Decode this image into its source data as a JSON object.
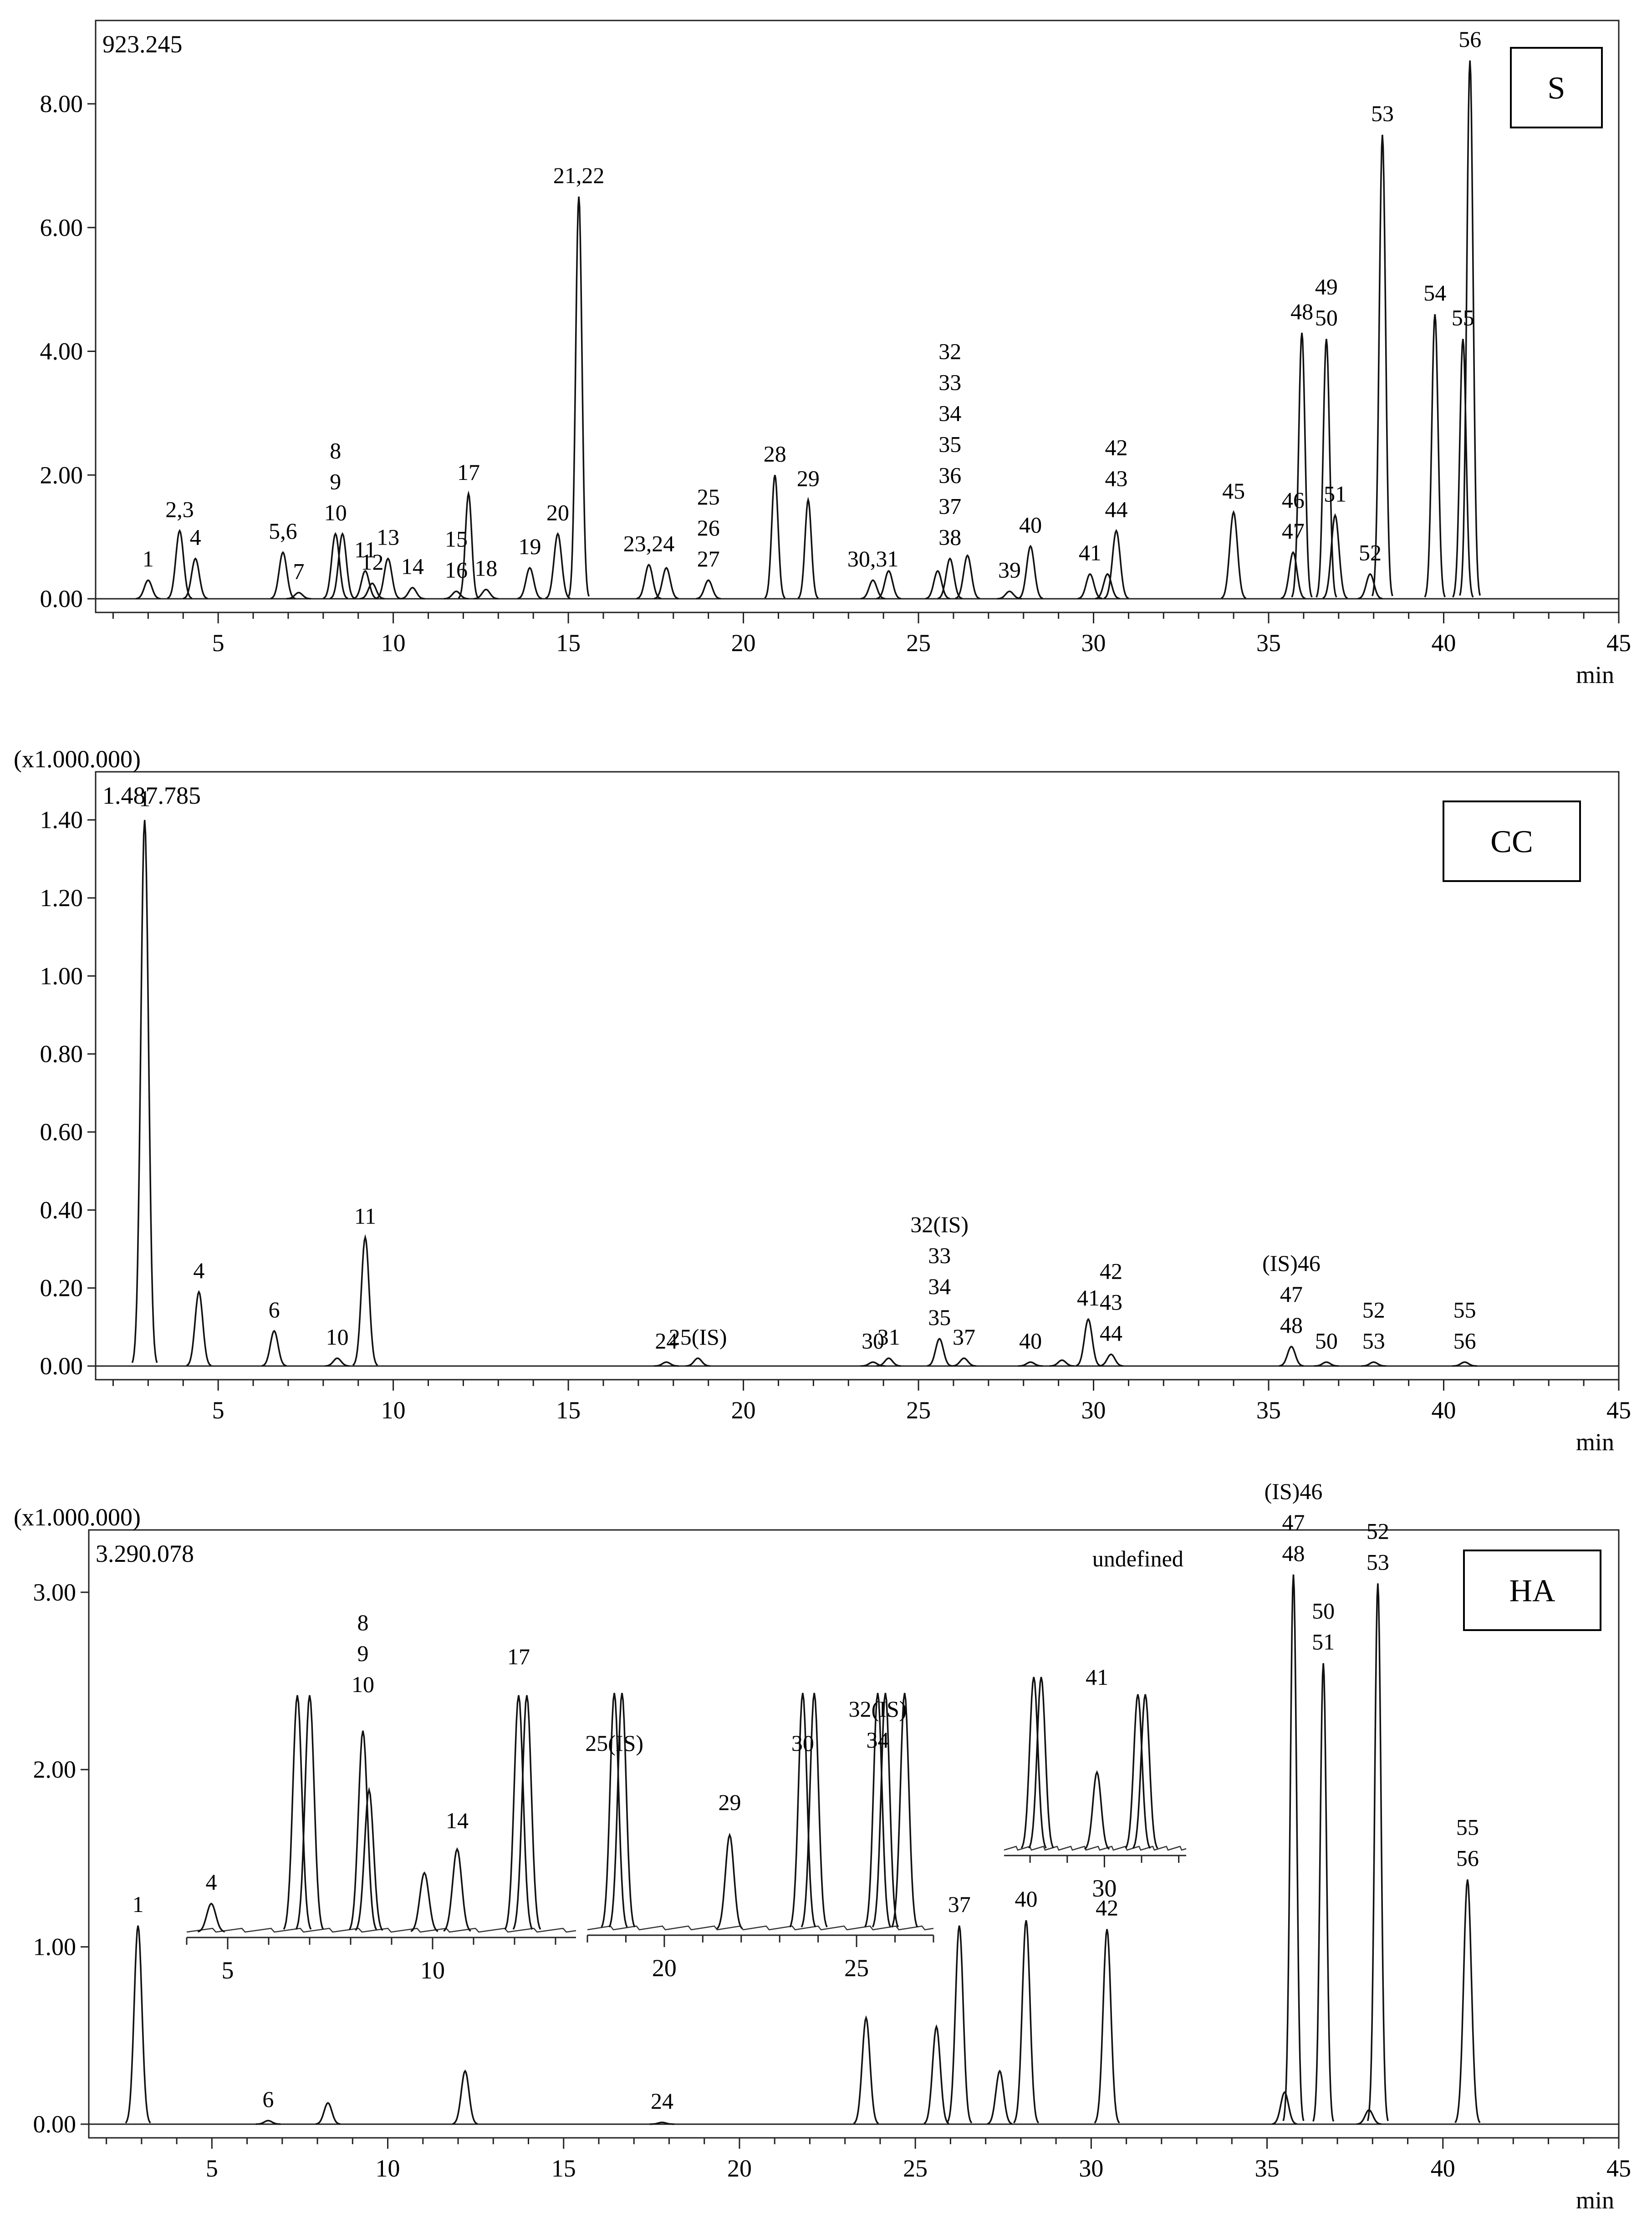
{
  "chart_data": [
    {
      "type": "line",
      "id": "S",
      "badge": "S",
      "multiplier_label": "",
      "max_label": "923.245",
      "xlabel": "min",
      "xlim": [
        1.5,
        45
      ],
      "ylim": [
        -0.1,
        9.2
      ],
      "x_ticks": [
        5,
        10,
        15,
        20,
        25,
        30,
        35,
        40,
        45
      ],
      "y_ticks": [
        0,
        2,
        4,
        6,
        8
      ],
      "y_tick_labels": [
        "0.00",
        "2.00",
        "4.00",
        "6.00",
        "8.00"
      ],
      "peaks": [
        {
          "label": "1",
          "t": 3.0,
          "h": 0.3
        },
        {
          "label": "2,3",
          "t": 3.9,
          "h": 1.1
        },
        {
          "label": "4",
          "t": 4.35,
          "h": 0.65
        },
        {
          "label": "5,6",
          "t": 6.85,
          "h": 0.75
        },
        {
          "label": "7",
          "t": 7.3,
          "h": 0.1
        },
        {
          "label": "8\n9\n10",
          "t": 8.35,
          "h": 1.05
        },
        {
          "label": "",
          "t": 8.55,
          "h": 1.05
        },
        {
          "label": "11",
          "t": 9.2,
          "h": 0.45
        },
        {
          "label": "12",
          "t": 9.4,
          "h": 0.25
        },
        {
          "label": "13",
          "t": 9.85,
          "h": 0.65
        },
        {
          "label": "14",
          "t": 10.55,
          "h": 0.18
        },
        {
          "label": "15\n16",
          "t": 11.8,
          "h": 0.12
        },
        {
          "label": "17",
          "t": 12.15,
          "h": 1.7
        },
        {
          "label": "18",
          "t": 12.65,
          "h": 0.15
        },
        {
          "label": "19",
          "t": 13.9,
          "h": 0.5
        },
        {
          "label": "20",
          "t": 14.7,
          "h": 1.05
        },
        {
          "label": "21,22",
          "t": 15.3,
          "h": 6.5
        },
        {
          "label": "23,24",
          "t": 17.3,
          "h": 0.55
        },
        {
          "label": "",
          "t": 17.8,
          "h": 0.5
        },
        {
          "label": "25\n26\n27",
          "t": 19.0,
          "h": 0.3
        },
        {
          "label": "28",
          "t": 20.9,
          "h": 2.0
        },
        {
          "label": "29",
          "t": 21.85,
          "h": 1.6
        },
        {
          "label": "30,31",
          "t": 23.7,
          "h": 0.3
        },
        {
          "label": "",
          "t": 24.15,
          "h": 0.45
        },
        {
          "label": "32\n33\n34\n35\n36\n37\n38",
          "t": 25.9,
          "h": 0.65
        },
        {
          "label": "",
          "t": 25.55,
          "h": 0.45
        },
        {
          "label": "",
          "t": 26.4,
          "h": 0.7
        },
        {
          "label": "39",
          "t": 27.6,
          "h": 0.12
        },
        {
          "label": "40",
          "t": 28.2,
          "h": 0.85
        },
        {
          "label": "41",
          "t": 29.9,
          "h": 0.4
        },
        {
          "label": "42\n43\n44",
          "t": 30.65,
          "h": 1.1
        },
        {
          "label": "",
          "t": 30.4,
          "h": 0.4
        },
        {
          "label": "45",
          "t": 34.0,
          "h": 1.4
        },
        {
          "label": "46\n47",
          "t": 35.7,
          "h": 0.75
        },
        {
          "label": "48",
          "t": 35.95,
          "h": 4.3
        },
        {
          "label": "49\n50",
          "t": 36.65,
          "h": 4.2
        },
        {
          "label": "51",
          "t": 36.9,
          "h": 1.35
        },
        {
          "label": "52",
          "t": 37.9,
          "h": 0.4
        },
        {
          "label": "53",
          "t": 38.25,
          "h": 7.5
        },
        {
          "label": "54",
          "t": 39.75,
          "h": 4.6
        },
        {
          "label": "55",
          "t": 40.55,
          "h": 4.2
        },
        {
          "label": "56",
          "t": 40.75,
          "h": 8.7
        }
      ]
    },
    {
      "type": "line",
      "id": "CC",
      "badge": "CC",
      "multiplier_label": "(x1.000.000)",
      "max_label": "1.487.785",
      "xlabel": "min",
      "xlim": [
        1.5,
        45
      ],
      "ylim": [
        -0.03,
        1.5
      ],
      "x_ticks": [
        5,
        10,
        15,
        20,
        25,
        30,
        35,
        40,
        45
      ],
      "y_ticks": [
        0,
        0.2,
        0.4,
        0.6,
        0.8,
        1.0,
        1.2,
        1.4
      ],
      "y_tick_labels": [
        "0.00",
        "0.20",
        "0.40",
        "0.60",
        "0.80",
        "1.00",
        "1.20",
        "1.40"
      ],
      "peaks": [
        {
          "label": "1",
          "t": 2.9,
          "h": 1.4
        },
        {
          "label": "4",
          "t": 4.45,
          "h": 0.19
        },
        {
          "label": "6",
          "t": 6.6,
          "h": 0.09
        },
        {
          "label": "10",
          "t": 8.4,
          "h": 0.02
        },
        {
          "label": "11",
          "t": 9.2,
          "h": 0.33
        },
        {
          "label": "24",
          "t": 17.8,
          "h": 0.01
        },
        {
          "label": "25(IS)",
          "t": 18.7,
          "h": 0.02
        },
        {
          "label": "30",
          "t": 23.7,
          "h": 0.01
        },
        {
          "label": "31",
          "t": 24.15,
          "h": 0.02
        },
        {
          "label": "32(IS)\n33\n34\n35",
          "t": 25.6,
          "h": 0.07
        },
        {
          "label": "37",
          "t": 26.3,
          "h": 0.02
        },
        {
          "label": "40",
          "t": 28.2,
          "h": 0.01
        },
        {
          "label": "",
          "t": 29.1,
          "h": 0.015
        },
        {
          "label": "41",
          "t": 29.85,
          "h": 0.12
        },
        {
          "label": "42\n43\n44",
          "t": 30.5,
          "h": 0.03
        },
        {
          "label": "(IS)46\n47\n48",
          "t": 35.65,
          "h": 0.05
        },
        {
          "label": "50",
          "t": 36.65,
          "h": 0.01
        },
        {
          "label": "52\n53",
          "t": 38.0,
          "h": 0.01
        },
        {
          "label": "55\n56",
          "t": 40.6,
          "h": 0.01
        }
      ]
    },
    {
      "type": "line",
      "id": "HA",
      "badge": "HA",
      "multiplier_label": "(x1.000.000)",
      "max_label": "3.290.078",
      "xlabel": "min",
      "xlim": [
        1.5,
        45
      ],
      "ylim": [
        -0.07,
        3.3
      ],
      "x_ticks": [
        5,
        10,
        15,
        20,
        25,
        30,
        35,
        40,
        45
      ],
      "y_ticks": [
        0,
        1,
        2,
        3
      ],
      "y_tick_labels": [
        "0.00",
        "1.00",
        "2.00",
        "3.00"
      ],
      "peaks": [
        {
          "label": "1",
          "t": 2.9,
          "h": 1.12
        },
        {
          "label": "6",
          "t": 6.6,
          "h": 0.02
        },
        {
          "label": "",
          "t": 8.3,
          "h": 0.12
        },
        {
          "label": "",
          "t": 12.2,
          "h": 0.3
        },
        {
          "label": "24",
          "t": 17.8,
          "h": 0.01
        },
        {
          "label": "",
          "t": 23.6,
          "h": 0.6
        },
        {
          "label": "",
          "t": 25.6,
          "h": 0.55
        },
        {
          "label": "37",
          "t": 26.25,
          "h": 1.12
        },
        {
          "label": "",
          "t": 27.4,
          "h": 0.3
        },
        {
          "label": "40",
          "t": 28.15,
          "h": 1.15
        },
        {
          "label": "42",
          "t": 30.45,
          "h": 1.1
        },
        {
          "label": "",
          "t": 35.5,
          "h": 0.18
        },
        {
          "label": "(IS)46\n47\n48",
          "t": 35.75,
          "h": 3.1
        },
        {
          "label": "50\n51",
          "t": 36.6,
          "h": 2.6
        },
        {
          "label": "",
          "t": 37.9,
          "h": 0.08
        },
        {
          "label": "52\n53",
          "t": 38.15,
          "h": 3.05
        },
        {
          "label": "55\n56",
          "t": 40.7,
          "h": 1.38
        }
      ],
      "insets": [
        {
          "id": "inset-a",
          "x_ticks": [
            5,
            10
          ],
          "tick_labels_shown": [
            "5",
            "10"
          ],
          "labels": [
            "4",
            "8\n9\n10",
            "14",
            "17"
          ]
        },
        {
          "id": "inset-b",
          "x_ticks": [
            20,
            25
          ],
          "tick_labels_shown": [
            "20",
            "25"
          ],
          "labels": [
            "25(IS)",
            "29",
            "30",
            "32(IS)\n34"
          ]
        },
        {
          "id": "inset-c",
          "x_ticks": [
            30
          ],
          "tick_labels_shown": [
            "30"
          ],
          "labels": [
            "41"
          ]
        }
      ]
    }
  ]
}
